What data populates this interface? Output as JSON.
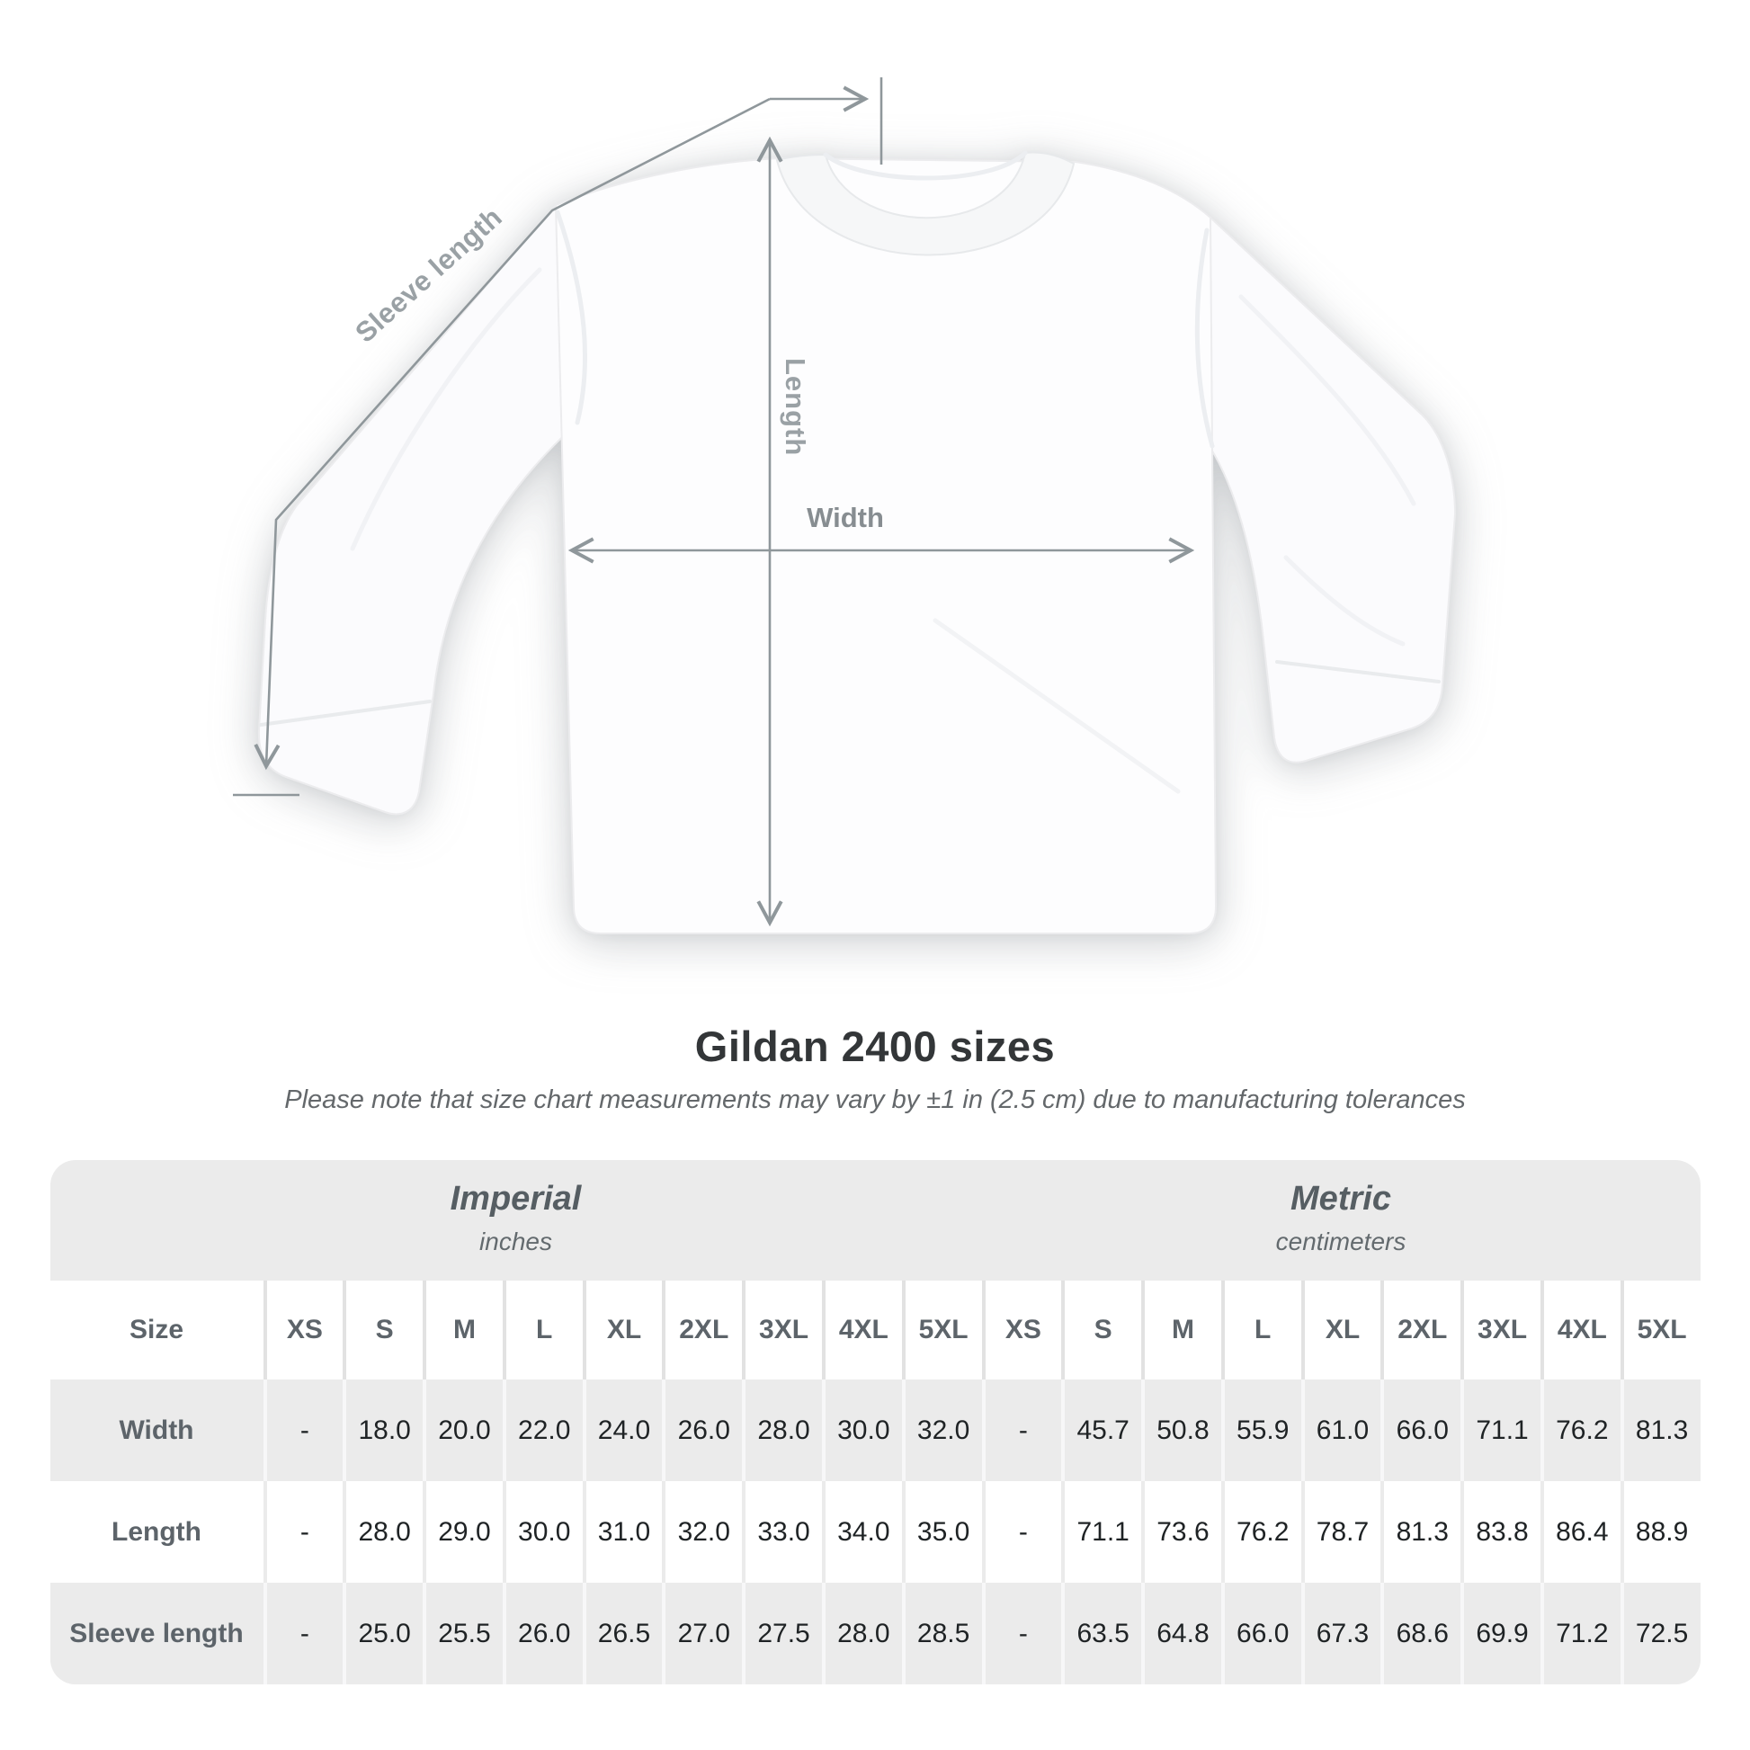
{
  "page": {
    "title": "Gildan 2400 sizes",
    "subtitle": "Please note that size chart measurements may vary by ±1 in (2.5 cm) due to manufacturing tolerances"
  },
  "diagram": {
    "sleeve_length_label": "Sleeve length",
    "length_label": "Length",
    "width_label": "Width"
  },
  "table": {
    "size_header": "Size",
    "unit_groups": [
      {
        "name": "Imperial",
        "unit": "inches"
      },
      {
        "name": "Metric",
        "unit": "centimeters"
      }
    ],
    "sizes": [
      "XS",
      "S",
      "M",
      "L",
      "XL",
      "2XL",
      "3XL",
      "4XL",
      "5XL"
    ],
    "rows": [
      {
        "label": "Width",
        "imperial": [
          "-",
          "18.0",
          "20.0",
          "22.0",
          "24.0",
          "26.0",
          "28.0",
          "30.0",
          "32.0"
        ],
        "metric": [
          "-",
          "45.7",
          "50.8",
          "55.9",
          "61.0",
          "66.0",
          "71.1",
          "76.2",
          "81.3"
        ]
      },
      {
        "label": "Length",
        "imperial": [
          "-",
          "28.0",
          "29.0",
          "30.0",
          "31.0",
          "32.0",
          "33.0",
          "34.0",
          "35.0"
        ],
        "metric": [
          "-",
          "71.1",
          "73.6",
          "76.2",
          "78.7",
          "81.3",
          "83.8",
          "86.4",
          "88.9"
        ]
      },
      {
        "label": "Sleeve length",
        "imperial": [
          "-",
          "25.0",
          "25.5",
          "26.0",
          "26.5",
          "27.0",
          "27.5",
          "28.0",
          "28.5"
        ],
        "metric": [
          "-",
          "63.5",
          "64.8",
          "66.0",
          "67.3",
          "68.6",
          "69.9",
          "71.2",
          "72.5"
        ]
      }
    ]
  },
  "colors": {
    "table_band": "#ebebeb",
    "header_text": "#5d646a",
    "value_text": "#1f2325",
    "measure_line": "#8f979b",
    "diagram_label": "#9aa1a5",
    "title_text": "#333638"
  }
}
